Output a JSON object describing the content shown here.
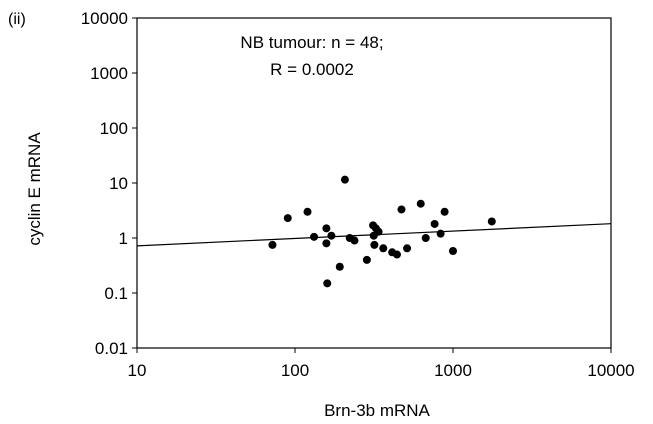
{
  "chart_data": {
    "type": "scatter",
    "panel_label": "(ii)",
    "title": "",
    "xlabel": "Brn-3b mRNA",
    "ylabel": "cyclin E mRNA",
    "x_scale": "log",
    "y_scale": "log",
    "xlim": [
      10,
      10000
    ],
    "ylim": [
      0.01,
      10000
    ],
    "x_ticks": [
      "10",
      "100",
      "1000",
      "10000"
    ],
    "y_ticks": [
      "0.01",
      "0.1",
      "1",
      "10",
      "100",
      "1000",
      "10000"
    ],
    "grid": false,
    "annotation": [
      "NB tumour: n = 48;",
      "R = 0.0002"
    ],
    "fit_line": {
      "x": [
        10,
        10000
      ],
      "y": [
        0.72,
        1.82
      ]
    },
    "points": [
      {
        "x": 72,
        "y": 0.75
      },
      {
        "x": 90,
        "y": 2.3
      },
      {
        "x": 120,
        "y": 3.0
      },
      {
        "x": 132,
        "y": 1.05
      },
      {
        "x": 158,
        "y": 1.5
      },
      {
        "x": 158,
        "y": 0.8
      },
      {
        "x": 160,
        "y": 0.15
      },
      {
        "x": 170,
        "y": 1.1
      },
      {
        "x": 192,
        "y": 0.3
      },
      {
        "x": 207,
        "y": 11.5
      },
      {
        "x": 222,
        "y": 1.0
      },
      {
        "x": 238,
        "y": 0.9
      },
      {
        "x": 285,
        "y": 0.4
      },
      {
        "x": 312,
        "y": 1.7
      },
      {
        "x": 315,
        "y": 1.1
      },
      {
        "x": 318,
        "y": 0.75
      },
      {
        "x": 325,
        "y": 1.5
      },
      {
        "x": 338,
        "y": 1.3
      },
      {
        "x": 362,
        "y": 0.65
      },
      {
        "x": 412,
        "y": 0.55
      },
      {
        "x": 442,
        "y": 0.5
      },
      {
        "x": 472,
        "y": 3.3
      },
      {
        "x": 512,
        "y": 0.65
      },
      {
        "x": 625,
        "y": 4.2
      },
      {
        "x": 672,
        "y": 1.0
      },
      {
        "x": 765,
        "y": 1.8
      },
      {
        "x": 835,
        "y": 1.2
      },
      {
        "x": 885,
        "y": 3.0
      },
      {
        "x": 1000,
        "y": 0.58
      },
      {
        "x": 1760,
        "y": 2.0
      }
    ]
  }
}
